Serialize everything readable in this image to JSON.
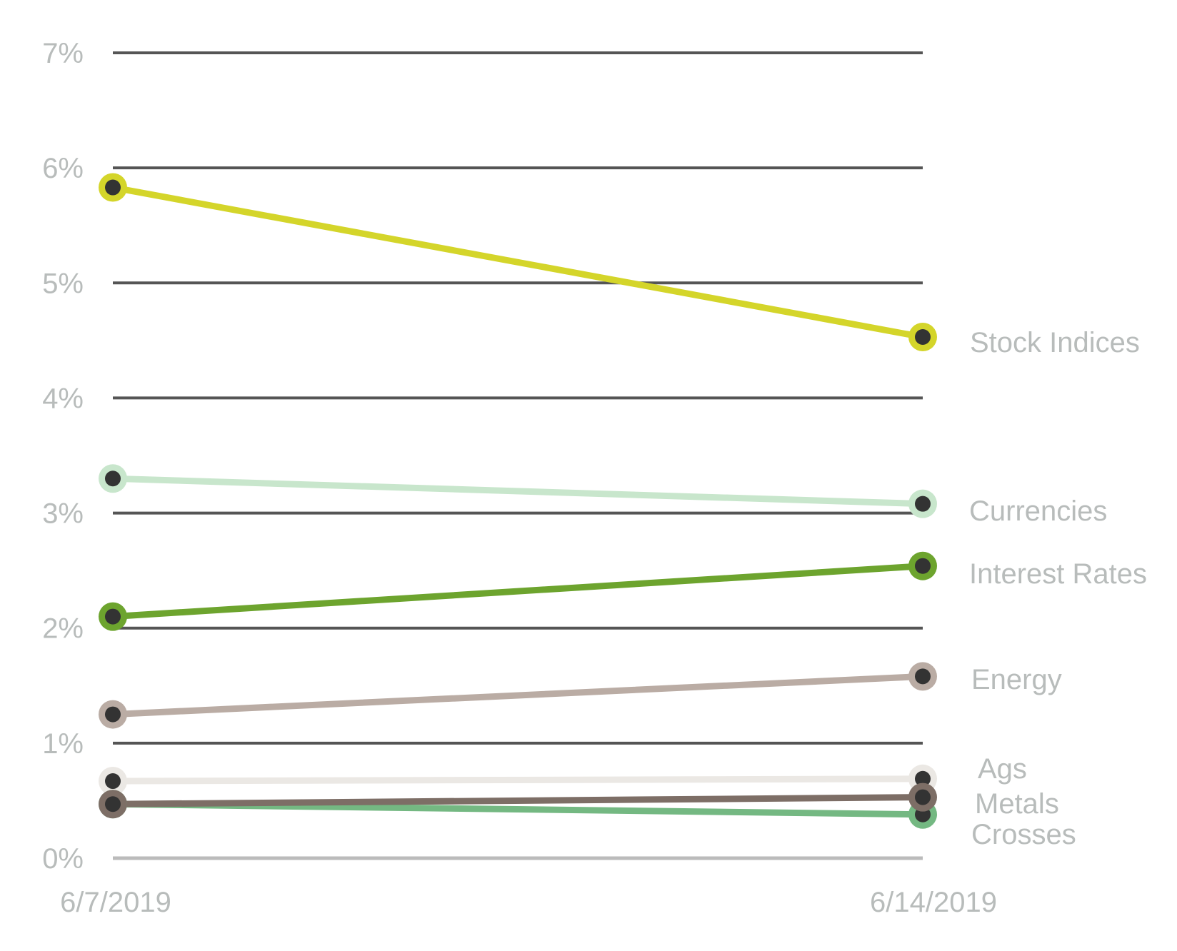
{
  "chart_data": {
    "type": "line",
    "title": "",
    "xlabel": "",
    "ylabel": "",
    "x": [
      "6/7/2019",
      "6/14/2019"
    ],
    "ylim": [
      0,
      7
    ],
    "y_ticks": [
      0,
      1,
      2,
      3,
      4,
      5,
      6,
      7
    ],
    "y_tick_labels": [
      "0%",
      "1%",
      "2%",
      "3%",
      "4%",
      "5%",
      "6%",
      "7%"
    ],
    "grid": true,
    "legend": "none",
    "marker_center_color": "#333333",
    "gridline_color": "#555555",
    "baseline_color": "#bbbbbb",
    "series": [
      {
        "name": "Stock Indices",
        "values": [
          5.83,
          4.53
        ],
        "color": "#d4d52a"
      },
      {
        "name": "Currencies",
        "values": [
          3.3,
          3.08
        ],
        "color": "#c8e6cc"
      },
      {
        "name": "Interest Rates",
        "values": [
          2.1,
          2.54
        ],
        "color": "#6da42e"
      },
      {
        "name": "Energy",
        "values": [
          1.25,
          1.58
        ],
        "color": "#baaca4"
      },
      {
        "name": "Ags",
        "values": [
          0.67,
          0.69
        ],
        "color": "#ebe8e4"
      },
      {
        "name": "Crosses",
        "values": [
          0.47,
          0.38
        ],
        "color": "#74b882"
      },
      {
        "name": "Metals",
        "values": [
          0.47,
          0.53
        ],
        "color": "#7d6e66"
      }
    ]
  }
}
